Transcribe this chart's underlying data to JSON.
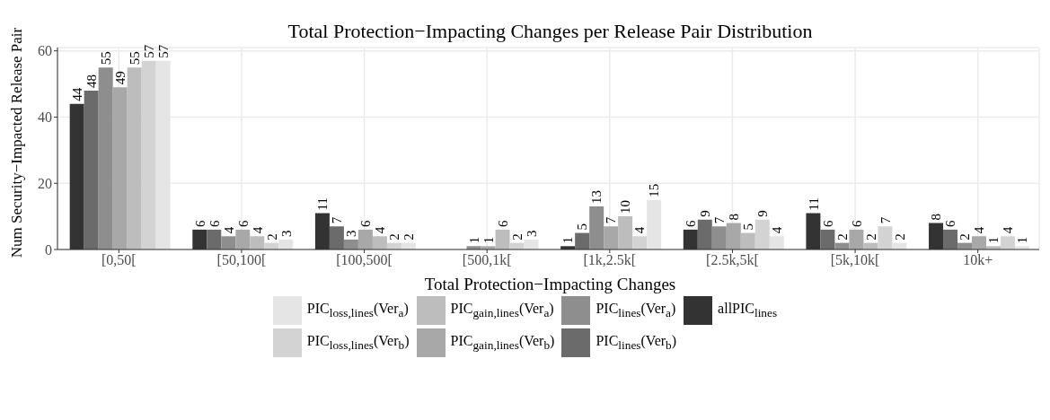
{
  "chart_data": {
    "type": "bar",
    "title": "Total Protection−Impacting Changes per Release Pair Distribution",
    "xlabel": "Total Protection−Impacting Changes",
    "ylabel": "Num Security−Impacted Release Pair",
    "categories": [
      "[0,50[",
      "[50,100[",
      "[100,500[",
      "[500,1k[",
      "[1k,2.5k[",
      "[2.5k,5k[",
      "[5k,10k[",
      "10k+"
    ],
    "series": [
      {
        "name": "allPIC$_{lines}$",
        "color": "#333333",
        "values": [
          44,
          6,
          11,
          null,
          1,
          6,
          11,
          8
        ]
      },
      {
        "name": "PIC$_{lines}$(Ver$_{b}$)",
        "color": "#6b6b6b",
        "values": [
          48,
          6,
          7,
          null,
          5,
          9,
          6,
          6
        ]
      },
      {
        "name": "PIC$_{lines}$(Ver$_{a}$)",
        "color": "#8e8e8e",
        "values": [
          55,
          4,
          3,
          1,
          13,
          7,
          2,
          2
        ]
      },
      {
        "name": "PIC$_{gain,lines}$(Ver$_{b}$)",
        "color": "#a8a8a8",
        "values": [
          49,
          6,
          6,
          1,
          7,
          8,
          6,
          4
        ]
      },
      {
        "name": "PIC$_{gain,lines}$(Ver$_{a}$)",
        "color": "#bdbdbd",
        "values": [
          55,
          4,
          4,
          6,
          10,
          5,
          2,
          1
        ]
      },
      {
        "name": "PIC$_{loss,lines}$(Ver$_{b}$)",
        "color": "#d3d3d3",
        "values": [
          57,
          2,
          2,
          2,
          4,
          9,
          7,
          4
        ]
      },
      {
        "name": "PIC$_{loss,lines}$(Ver$_{a}$)",
        "color": "#e5e5e5",
        "values": [
          57,
          3,
          2,
          3,
          15,
          4,
          2,
          1
        ]
      }
    ],
    "ylim": [
      0,
      61
    ],
    "yticks": [
      0,
      20,
      40,
      60
    ],
    "grid": true,
    "legend": "bottom",
    "data_labels": true
  }
}
